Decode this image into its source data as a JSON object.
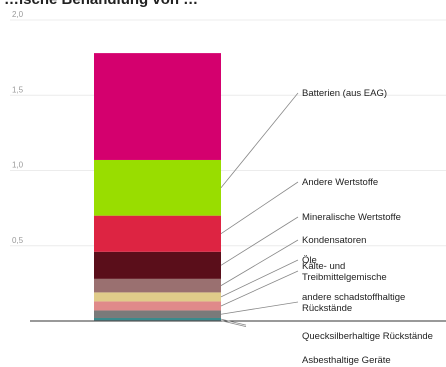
{
  "chart_data": {
    "type": "bar",
    "title": "…ische Behandlung von …",
    "ylim": [
      0,
      2.0
    ],
    "y_ticks": [
      "0,5",
      "1,0",
      "1,5",
      "2,0"
    ],
    "grid": true,
    "stack": [
      {
        "name": "Asbesthaltige Geräte",
        "value": 0.005,
        "color": "#1f3a4d"
      },
      {
        "name": "Quecksilberhaltige Rückstände",
        "value": 0.015,
        "color": "#3a8a8c"
      },
      {
        "name": "andere schadstoffhaltige Rückstände",
        "value": 0.05,
        "color": "#7a7a7a"
      },
      {
        "name": "Kälte- und Treibmittelgemische",
        "value": 0.06,
        "color": "#e08a8a"
      },
      {
        "name": "Öle",
        "value": 0.06,
        "color": "#e0cc8a"
      },
      {
        "name": "Kondensatoren",
        "value": 0.09,
        "color": "#9a7070"
      },
      {
        "name": "Mineralische Wertstoffe",
        "value": 0.18,
        "color": "#5a0e1a"
      },
      {
        "name": "Andere Wertstoffe",
        "value": 0.24,
        "color": "#dd2442"
      },
      {
        "name": "Batterien (aus EAG)",
        "value": 0.37,
        "color": "#99dd00"
      },
      {
        "name": "",
        "value": 0.71,
        "color": "#d4006e"
      }
    ]
  }
}
